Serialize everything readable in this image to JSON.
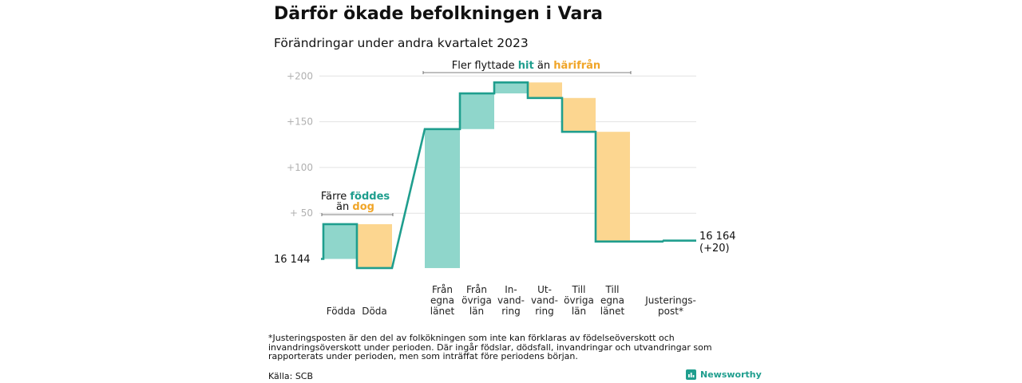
{
  "title": "Därför ökade befolkningen i Vara",
  "subtitle": "Förändringar under andra kvartalet 2023",
  "footnote": "*Justeringsposten är den del av folkökningen som inte kan förklaras av födelseöverskott och invandringsöverskott under perioden. Där ingår födslar, dödsfall, invandringar och utvandringar som rapporterats under perioden, men som inträffat före periodens början.",
  "source": "Källa: SCB",
  "brand": {
    "name": "Newsworthy",
    "icon": "newsworthy-logo-icon"
  },
  "colors": {
    "increase": "#8fd6cb",
    "decrease": "#fcd690",
    "line": "#1f9e8e",
    "teal_text": "#1f9e8e",
    "orange_text": "#f0a528",
    "axis_text": "#b0b0b0"
  },
  "annotations": {
    "births_deaths": {
      "line1_prefix": "Färre ",
      "line1_highlight": "föddes",
      "line2_prefix": "än ",
      "line2_highlight": "dog"
    },
    "migration": {
      "prefix": "Fler flyttade ",
      "hit": "hit",
      "mid": " än ",
      "harifran": "härifrån"
    }
  },
  "chart_data": {
    "type": "waterfall",
    "title": "Därför ökade befolkningen i Vara",
    "subtitle": "Förändringar under andra kvartalet 2023",
    "start_value": 16144,
    "start_label": "16  144",
    "end_label_value": "16 164",
    "end_label_change": "(+20)",
    "y_ticks": [
      "+ 50",
      "+100",
      "+150",
      "+200"
    ],
    "y_tick_values": [
      50,
      100,
      150,
      200
    ],
    "ylim": [
      -10,
      205
    ],
    "categories": [
      {
        "label": "Födda",
        "change": 38,
        "from": 0,
        "to": 38
      },
      {
        "label": "Döda",
        "change": -48,
        "from": 38,
        "to": -10
      },
      {
        "label": "Från egna länet",
        "change": 152,
        "from": -10,
        "to": 142
      },
      {
        "label": "Från övriga län",
        "change": 39,
        "from": 142,
        "to": 181
      },
      {
        "label": "In-vand-ring",
        "change": 12,
        "from": 181,
        "to": 193
      },
      {
        "label": "Ut-vand-ring",
        "change": -17,
        "from": 193,
        "to": 176
      },
      {
        "label": "Till övriga län",
        "change": -37,
        "from": 176,
        "to": 139
      },
      {
        "label": "Till egna länet",
        "change": -120,
        "from": 139,
        "to": 19
      },
      {
        "label": "Justerings-post*",
        "change": 1,
        "from": 19,
        "to": 20
      }
    ],
    "x_labels": [
      [
        "Födda"
      ],
      [
        "Döda"
      ],
      [
        "Från",
        "egna",
        "länet"
      ],
      [
        "Från",
        "övriga",
        "län"
      ],
      [
        "In-",
        "vand-",
        "ring"
      ],
      [
        "Ut-",
        "vand-",
        "ring"
      ],
      [
        "Till",
        "övriga",
        "län"
      ],
      [
        "Till",
        "egna",
        "länet"
      ],
      [
        "Justerings-",
        "post*"
      ]
    ]
  }
}
